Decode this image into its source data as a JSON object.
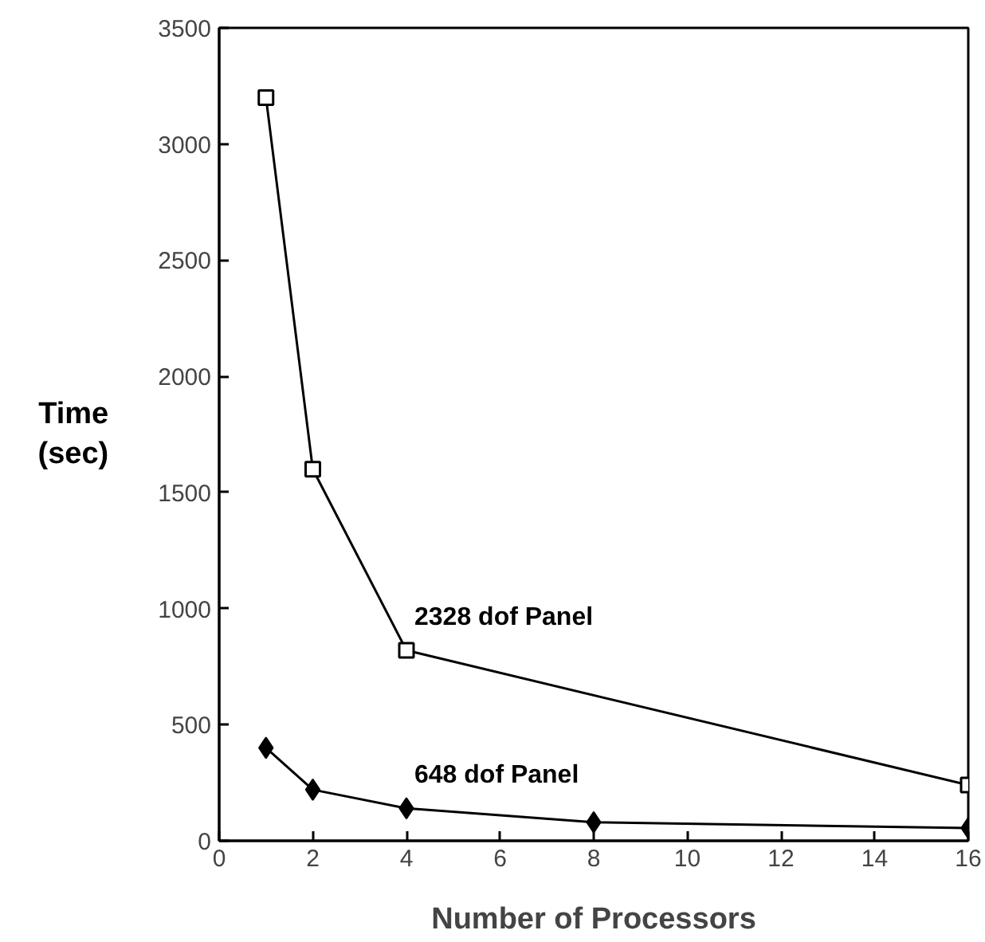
{
  "chart_data": {
    "type": "line",
    "xlabel": "Number of Processors",
    "ylabel": "Time\n(sec)",
    "xlim": [
      0,
      16
    ],
    "xticks": [
      0,
      2,
      4,
      6,
      8,
      10,
      12,
      14,
      16
    ],
    "ylim": [
      0,
      3500
    ],
    "yticks": [
      0,
      500,
      1000,
      1500,
      2000,
      2500,
      3000,
      3500
    ],
    "grid": false,
    "series": [
      {
        "name": "2328 dof Panel",
        "color": "#000000",
        "marker": "square",
        "x": [
          1,
          2,
          4,
          16
        ],
        "values": [
          3200,
          1600,
          820,
          240
        ]
      },
      {
        "name": "648 dof Panel",
        "color": "#000000",
        "marker": "diamond",
        "x": [
          1,
          2,
          4,
          8,
          16
        ],
        "values": [
          400,
          220,
          140,
          80,
          55
        ]
      }
    ]
  }
}
